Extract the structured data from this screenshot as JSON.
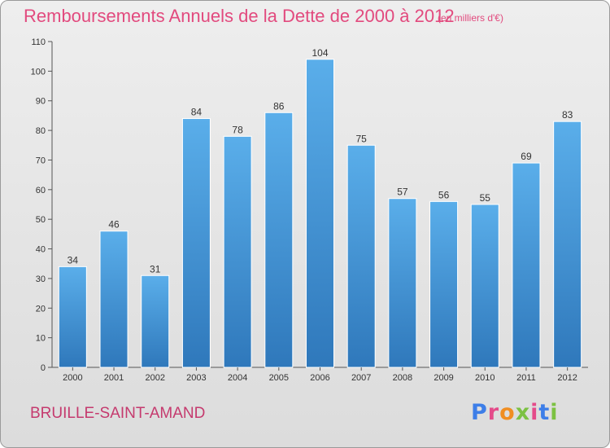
{
  "title": "Remboursements Annuels de la Dette de 2000 à 2012",
  "unit_note": "(en milliers d'€)",
  "commune": "BRUILLE-SAINT-AMAND",
  "logo_letters": [
    "P",
    "r",
    "o",
    "x",
    "i",
    "t",
    "i"
  ],
  "colors": {
    "title": "#e24a7e",
    "bar_top": "#5aaeea",
    "bar_bottom": "#2f78bb",
    "background": "#e6e6e6"
  },
  "chart_data": {
    "type": "bar",
    "title": "Remboursements Annuels de la Dette de 2000 à 2012",
    "categories": [
      "2000",
      "2001",
      "2002",
      "2003",
      "2004",
      "2005",
      "2006",
      "2007",
      "2008",
      "2009",
      "2010",
      "2011",
      "2012"
    ],
    "values": [
      34,
      46,
      31,
      84,
      78,
      86,
      104,
      75,
      57,
      56,
      55,
      69,
      83
    ],
    "ylim": [
      0,
      110
    ],
    "yticks": [
      0,
      10,
      20,
      30,
      40,
      50,
      60,
      70,
      80,
      90,
      100,
      110
    ],
    "grid": false,
    "data_labels": true
  }
}
